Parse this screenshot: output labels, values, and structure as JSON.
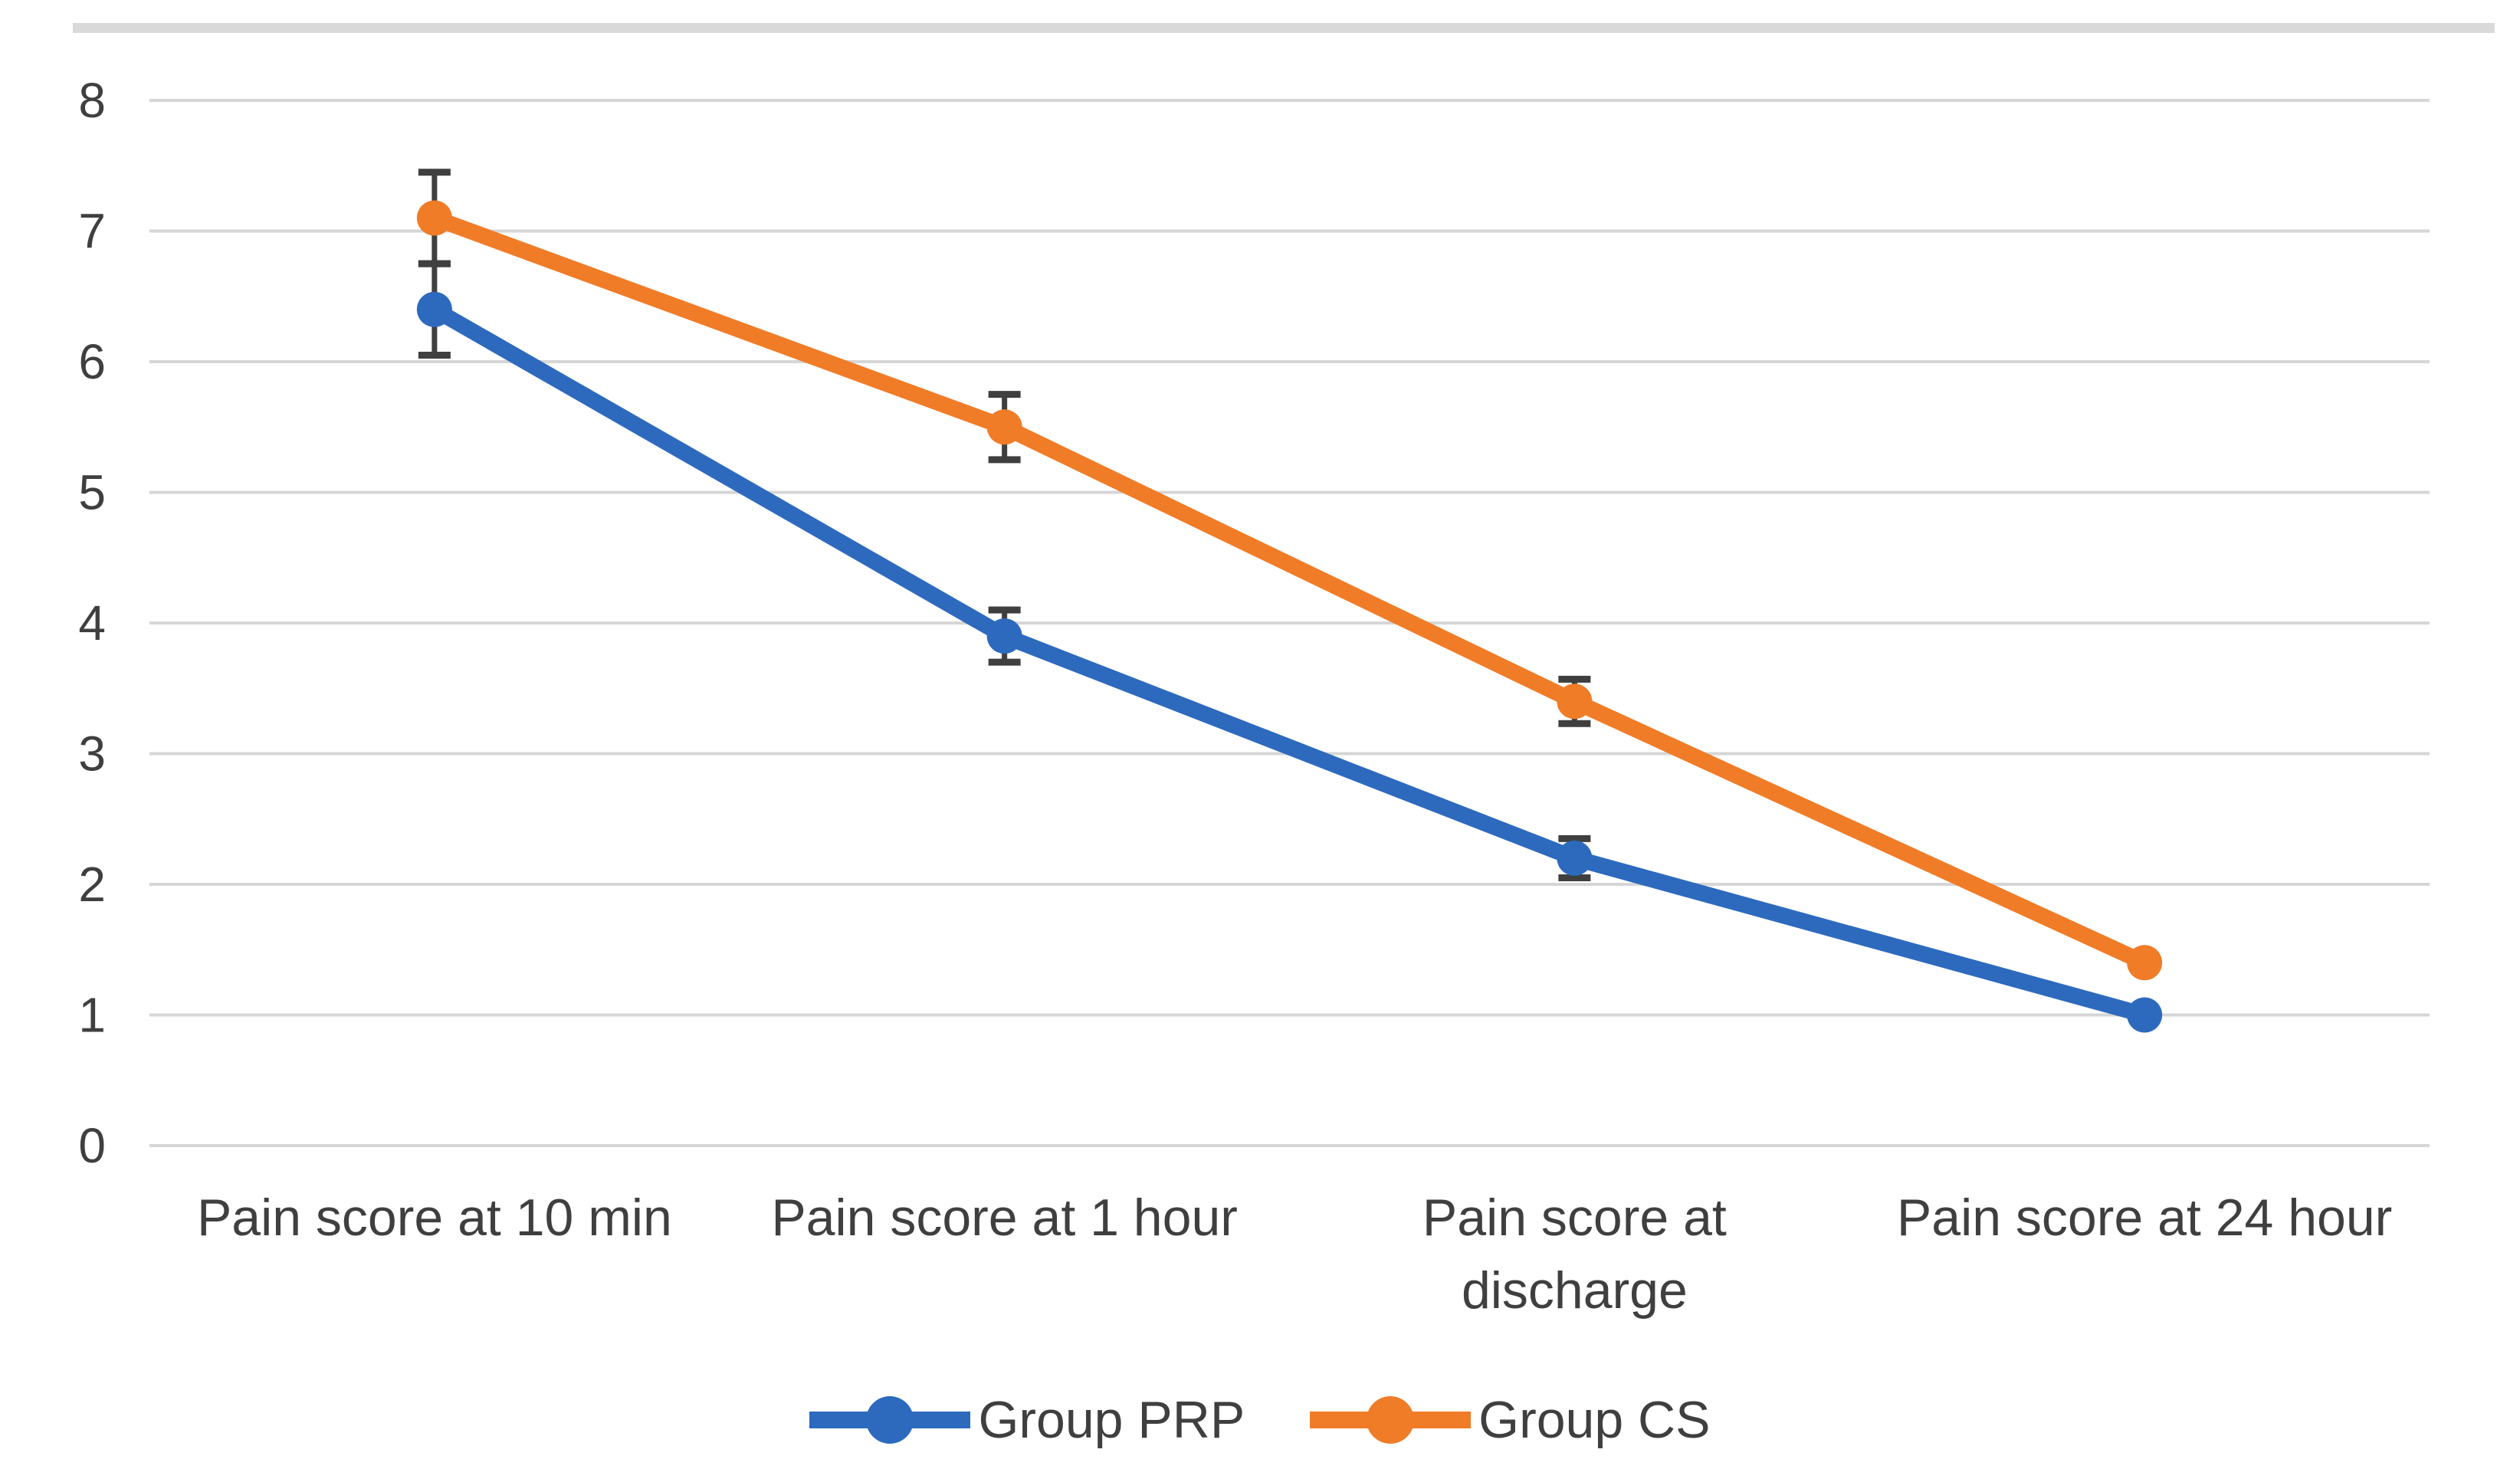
{
  "figure": {
    "background": "#ffffff",
    "top_border_color": "#d9d9d9"
  },
  "chart_data": {
    "type": "line",
    "title": "",
    "xlabel": "",
    "ylabel": "",
    "categories": [
      "Pain score at 10 min",
      "Pain score at 1 hour",
      "Pain score at discharge",
      "Pain score at 24 hour"
    ],
    "category_display_lines": [
      [
        "Pain score at 10 min"
      ],
      [
        "Pain score at 1 hour"
      ],
      [
        "Pain score at",
        "discharge"
      ],
      [
        "Pain score at 24 hour"
      ]
    ],
    "y_ticks": [
      0,
      1,
      2,
      3,
      4,
      5,
      6,
      7,
      8
    ],
    "ylim": [
      0,
      8
    ],
    "grid": true,
    "legend_position": "bottom",
    "series": [
      {
        "name": "Group PRP",
        "color": "#2d6abe",
        "values": [
          6.4,
          3.9,
          2.2,
          1.0
        ],
        "errors": [
          0.35,
          0.2,
          0.15,
          0
        ]
      },
      {
        "name": "Group CS",
        "color": "#f07c28",
        "values": [
          7.1,
          5.5,
          3.4,
          1.4
        ],
        "errors": [
          0.35,
          0.25,
          0.17,
          0
        ]
      }
    ],
    "gridline_color": "#d6d6d6",
    "axis_text_color": "#3f3f3f",
    "error_bar_color": "#3f3f3f"
  }
}
